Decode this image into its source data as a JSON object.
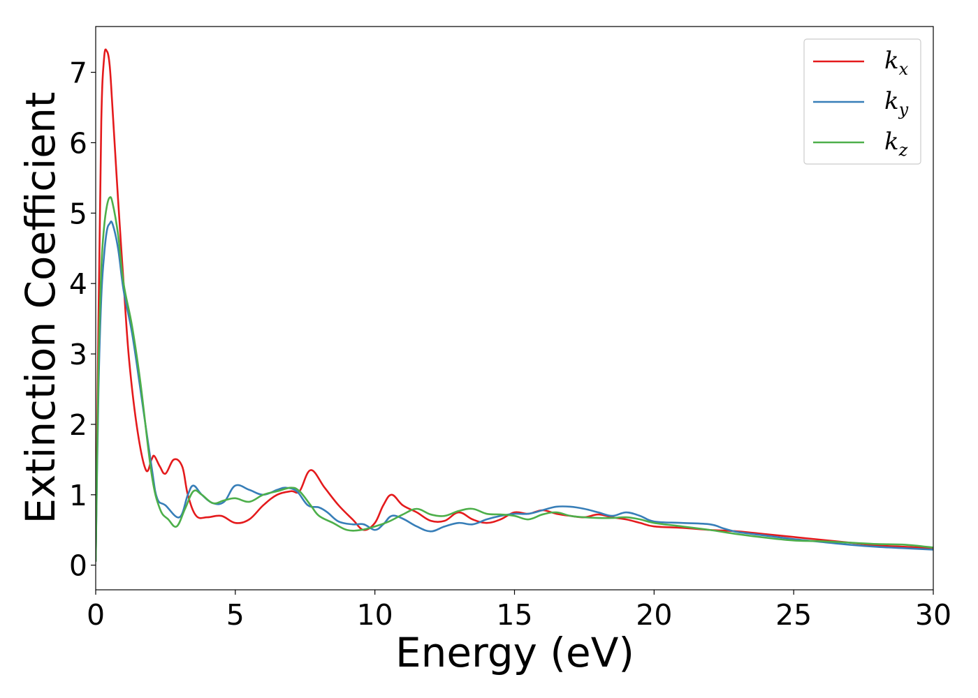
{
  "chart_data": {
    "type": "line",
    "title": "",
    "xlabel": "Energy (eV)",
    "ylabel": "Extinction Coefficient",
    "xlim": [
      0,
      30
    ],
    "ylim": [
      -0.35,
      7.65
    ],
    "xticks": [
      0,
      5,
      10,
      15,
      20,
      25,
      30
    ],
    "yticks": [
      0,
      1,
      2,
      3,
      4,
      5,
      6,
      7
    ],
    "grid": false,
    "legend_position": "top-right",
    "series": [
      {
        "name": "k",
        "subscript": "x",
        "color": "#e41a1c",
        "x": [
          0,
          0.1,
          0.2,
          0.3,
          0.4,
          0.5,
          0.6,
          0.8,
          1.0,
          1.2,
          1.5,
          1.8,
          2.0,
          2.1,
          2.3,
          2.5,
          2.8,
          3.1,
          3.3,
          3.6,
          4.0,
          4.5,
          5.0,
          5.5,
          6.0,
          6.5,
          7.0,
          7.3,
          7.7,
          8.2,
          8.7,
          9.2,
          9.6,
          10.0,
          10.3,
          10.6,
          11.0,
          11.5,
          12.0,
          12.5,
          13.0,
          13.5,
          14.0,
          14.5,
          15.0,
          15.5,
          16.0,
          16.5,
          17.0,
          17.5,
          18.0,
          18.5,
          19.0,
          19.5,
          20.0,
          21.0,
          22.0,
          23.0,
          24.0,
          25.0,
          26.0,
          27.0,
          28.0,
          29.0,
          30.0
        ],
        "values": [
          0.05,
          3.5,
          6.3,
          7.2,
          7.3,
          7.1,
          6.5,
          5.2,
          4.0,
          2.9,
          1.9,
          1.35,
          1.5,
          1.55,
          1.4,
          1.3,
          1.5,
          1.4,
          1.0,
          0.7,
          0.68,
          0.7,
          0.6,
          0.65,
          0.85,
          1.0,
          1.05,
          1.05,
          1.35,
          1.1,
          0.85,
          0.65,
          0.5,
          0.6,
          0.85,
          1.0,
          0.85,
          0.75,
          0.63,
          0.63,
          0.75,
          0.65,
          0.6,
          0.65,
          0.75,
          0.73,
          0.78,
          0.73,
          0.7,
          0.68,
          0.72,
          0.68,
          0.65,
          0.6,
          0.55,
          0.53,
          0.5,
          0.48,
          0.44,
          0.4,
          0.36,
          0.32,
          0.28,
          0.26,
          0.24
        ]
      },
      {
        "name": "k",
        "subscript": "y",
        "color": "#377eb8",
        "x": [
          0,
          0.1,
          0.2,
          0.3,
          0.4,
          0.5,
          0.6,
          0.8,
          1.0,
          1.3,
          1.6,
          2.0,
          2.2,
          2.5,
          3.0,
          3.3,
          3.5,
          3.8,
          4.2,
          4.6,
          5.0,
          5.5,
          6.0,
          6.5,
          6.8,
          7.2,
          7.6,
          8.0,
          8.3,
          8.7,
          9.2,
          9.6,
          10.0,
          10.3,
          10.6,
          11.0,
          11.5,
          12.0,
          12.5,
          13.0,
          13.5,
          14.0,
          14.5,
          15.0,
          15.5,
          16.0,
          16.5,
          17.0,
          17.5,
          18.0,
          18.5,
          19.0,
          19.5,
          20.0,
          21.0,
          22.0,
          22.5,
          23.0,
          24.0,
          25.0,
          26.0,
          27.0,
          28.0,
          29.0,
          30.0
        ],
        "values": [
          0.05,
          2.5,
          3.8,
          4.4,
          4.75,
          4.85,
          4.85,
          4.5,
          3.9,
          3.3,
          2.5,
          1.4,
          0.95,
          0.85,
          0.68,
          1.0,
          1.13,
          1.0,
          0.88,
          0.9,
          1.13,
          1.07,
          1.0,
          1.07,
          1.1,
          1.05,
          0.85,
          0.82,
          0.75,
          0.62,
          0.58,
          0.58,
          0.5,
          0.58,
          0.7,
          0.66,
          0.55,
          0.48,
          0.55,
          0.6,
          0.58,
          0.65,
          0.7,
          0.73,
          0.73,
          0.78,
          0.83,
          0.83,
          0.8,
          0.75,
          0.7,
          0.75,
          0.7,
          0.62,
          0.6,
          0.58,
          0.52,
          0.47,
          0.42,
          0.37,
          0.33,
          0.29,
          0.26,
          0.24,
          0.22
        ]
      },
      {
        "name": "k",
        "subscript": "z",
        "color": "#4daf4a",
        "x": [
          0,
          0.1,
          0.2,
          0.3,
          0.4,
          0.5,
          0.6,
          0.8,
          1.0,
          1.3,
          1.6,
          2.0,
          2.3,
          2.6,
          2.9,
          3.2,
          3.5,
          3.8,
          4.2,
          4.6,
          5.0,
          5.5,
          6.0,
          6.5,
          7.0,
          7.3,
          7.7,
          8.0,
          8.5,
          9.0,
          9.5,
          10.0,
          10.5,
          11.0,
          11.5,
          12.0,
          12.5,
          13.0,
          13.5,
          14.0,
          14.5,
          15.0,
          15.5,
          16.0,
          16.5,
          17.0,
          17.5,
          18.0,
          18.5,
          19.0,
          19.5,
          20.0,
          21.0,
          22.0,
          23.0,
          24.0,
          25.0,
          26.0,
          27.0,
          28.0,
          29.0,
          30.0
        ],
        "values": [
          0.05,
          2.8,
          4.2,
          4.8,
          5.1,
          5.22,
          5.15,
          4.7,
          4.0,
          3.4,
          2.6,
          1.3,
          0.8,
          0.65,
          0.55,
          0.8,
          1.05,
          1.0,
          0.88,
          0.92,
          0.95,
          0.9,
          1.0,
          1.05,
          1.1,
          1.05,
          0.85,
          0.7,
          0.6,
          0.5,
          0.5,
          0.55,
          0.62,
          0.72,
          0.8,
          0.72,
          0.7,
          0.77,
          0.8,
          0.73,
          0.72,
          0.7,
          0.65,
          0.72,
          0.75,
          0.7,
          0.68,
          0.67,
          0.67,
          0.68,
          0.65,
          0.6,
          0.55,
          0.5,
          0.44,
          0.39,
          0.35,
          0.34,
          0.32,
          0.3,
          0.29,
          0.25
        ]
      }
    ]
  }
}
